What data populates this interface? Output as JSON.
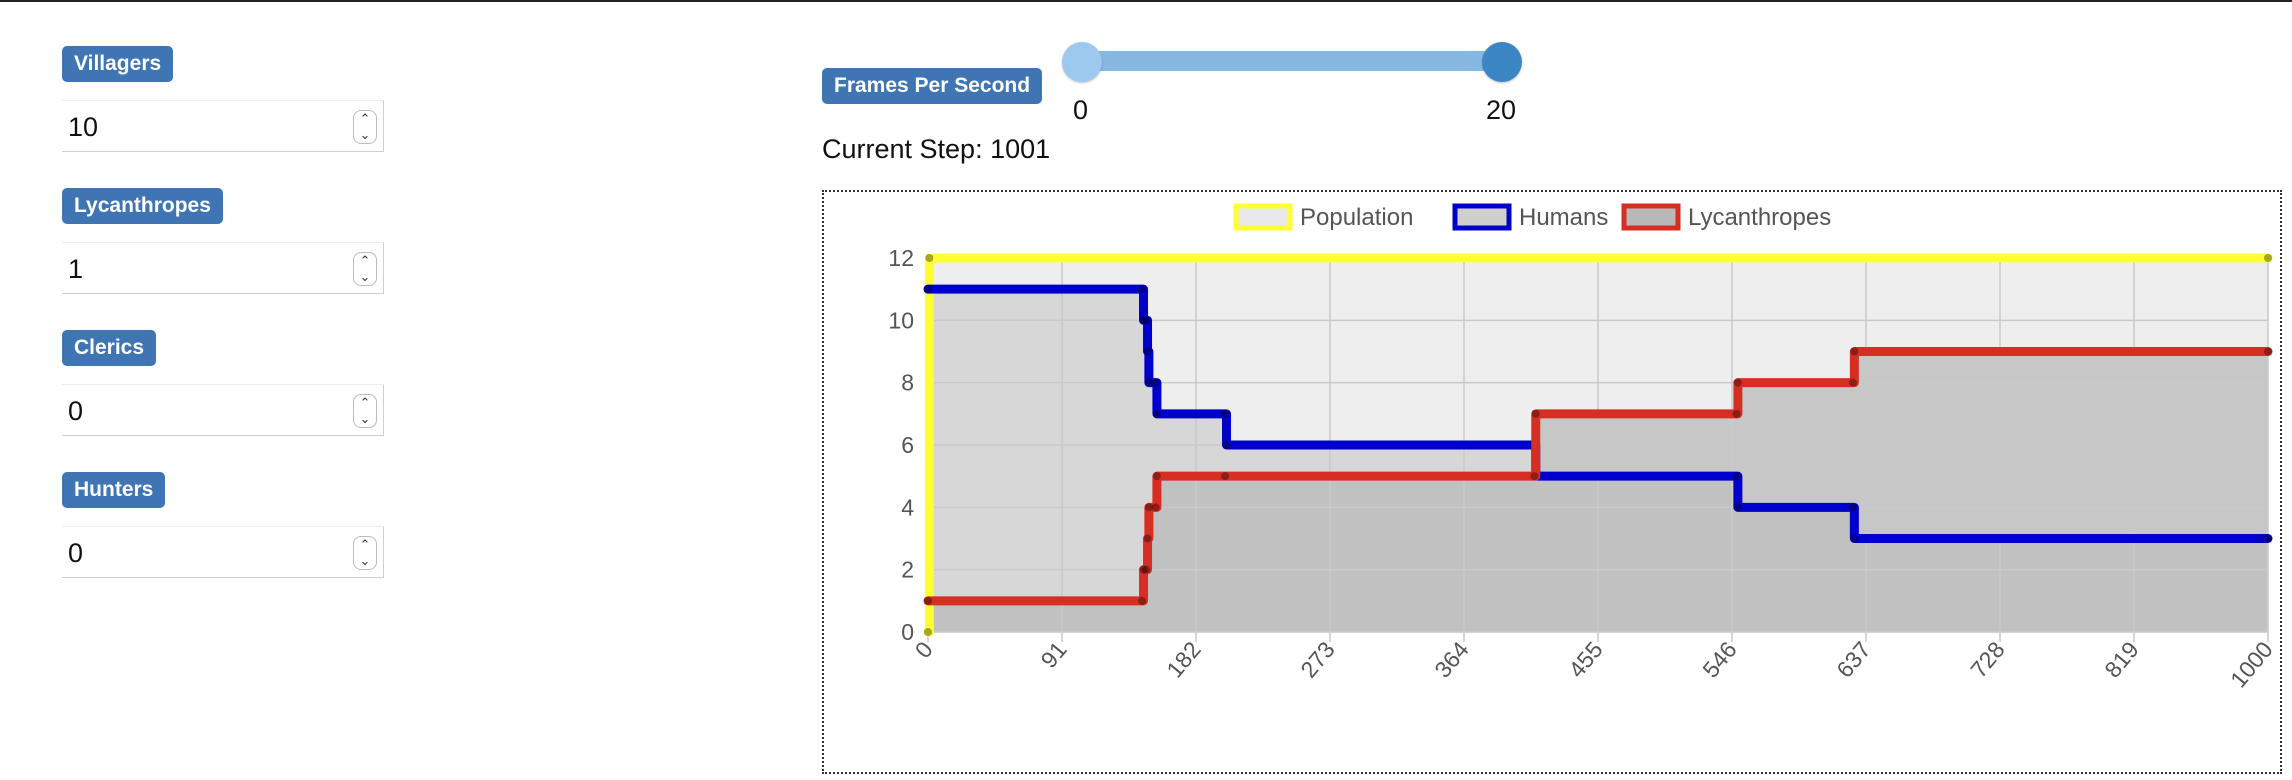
{
  "controls": [
    {
      "label": "Villagers",
      "value": "10"
    },
    {
      "label": "Lycanthropes",
      "value": "1"
    },
    {
      "label": "Clerics",
      "value": "0"
    },
    {
      "label": "Hunters",
      "value": "0"
    }
  ],
  "fps": {
    "label": "Frames Per Second",
    "min_label": "0",
    "max_label": "20",
    "value": 20,
    "min": 0,
    "max": 20
  },
  "status": {
    "current_step_text": "Current Step: 1001"
  },
  "colors": {
    "badge": "#3f75b3",
    "population": "#ffff33",
    "humans": "#0000cc",
    "lycanthropes": "#d62e23"
  },
  "chart_data": {
    "type": "line",
    "x_tick_labels": [
      "0",
      "91",
      "182",
      "273",
      "364",
      "455",
      "546",
      "637",
      "728",
      "819",
      "1000"
    ],
    "y_tick_labels": [
      "0",
      "2",
      "4",
      "6",
      "8",
      "10",
      "12"
    ],
    "xlim": [
      0,
      1001
    ],
    "ylim": [
      0,
      12
    ],
    "grid": true,
    "legend_position": "top",
    "series": [
      {
        "name": "Population",
        "color": "#ffff33",
        "fill": "#e8e8e8",
        "step": true,
        "points": [
          [
            0,
            0
          ],
          [
            1,
            12
          ],
          [
            1001,
            12
          ]
        ]
      },
      {
        "name": "Humans",
        "color": "#0000cc",
        "fill": "#cfcfcf",
        "step": true,
        "points": [
          [
            0,
            11
          ],
          [
            160,
            11
          ],
          [
            161,
            10
          ],
          [
            163,
            10
          ],
          [
            164,
            9
          ],
          [
            165,
            8
          ],
          [
            170,
            8
          ],
          [
            171,
            7
          ],
          [
            222,
            7
          ],
          [
            223,
            6
          ],
          [
            453,
            6
          ],
          [
            454,
            5
          ],
          [
            604,
            5
          ],
          [
            605,
            4
          ],
          [
            691,
            4
          ],
          [
            692,
            3
          ],
          [
            1001,
            3
          ]
        ]
      },
      {
        "name": "Lycanthropes",
        "color": "#d62e23",
        "fill": "#b9b9b9",
        "step": true,
        "points": [
          [
            0,
            1
          ],
          [
            160,
            1
          ],
          [
            161,
            2
          ],
          [
            163,
            2
          ],
          [
            164,
            3
          ],
          [
            165,
            4
          ],
          [
            170,
            4
          ],
          [
            171,
            5
          ],
          [
            222,
            5
          ],
          [
            453,
            5
          ],
          [
            454,
            7
          ],
          [
            604,
            7
          ],
          [
            605,
            8
          ],
          [
            691,
            8
          ],
          [
            692,
            9
          ],
          [
            1001,
            9
          ]
        ]
      }
    ]
  }
}
